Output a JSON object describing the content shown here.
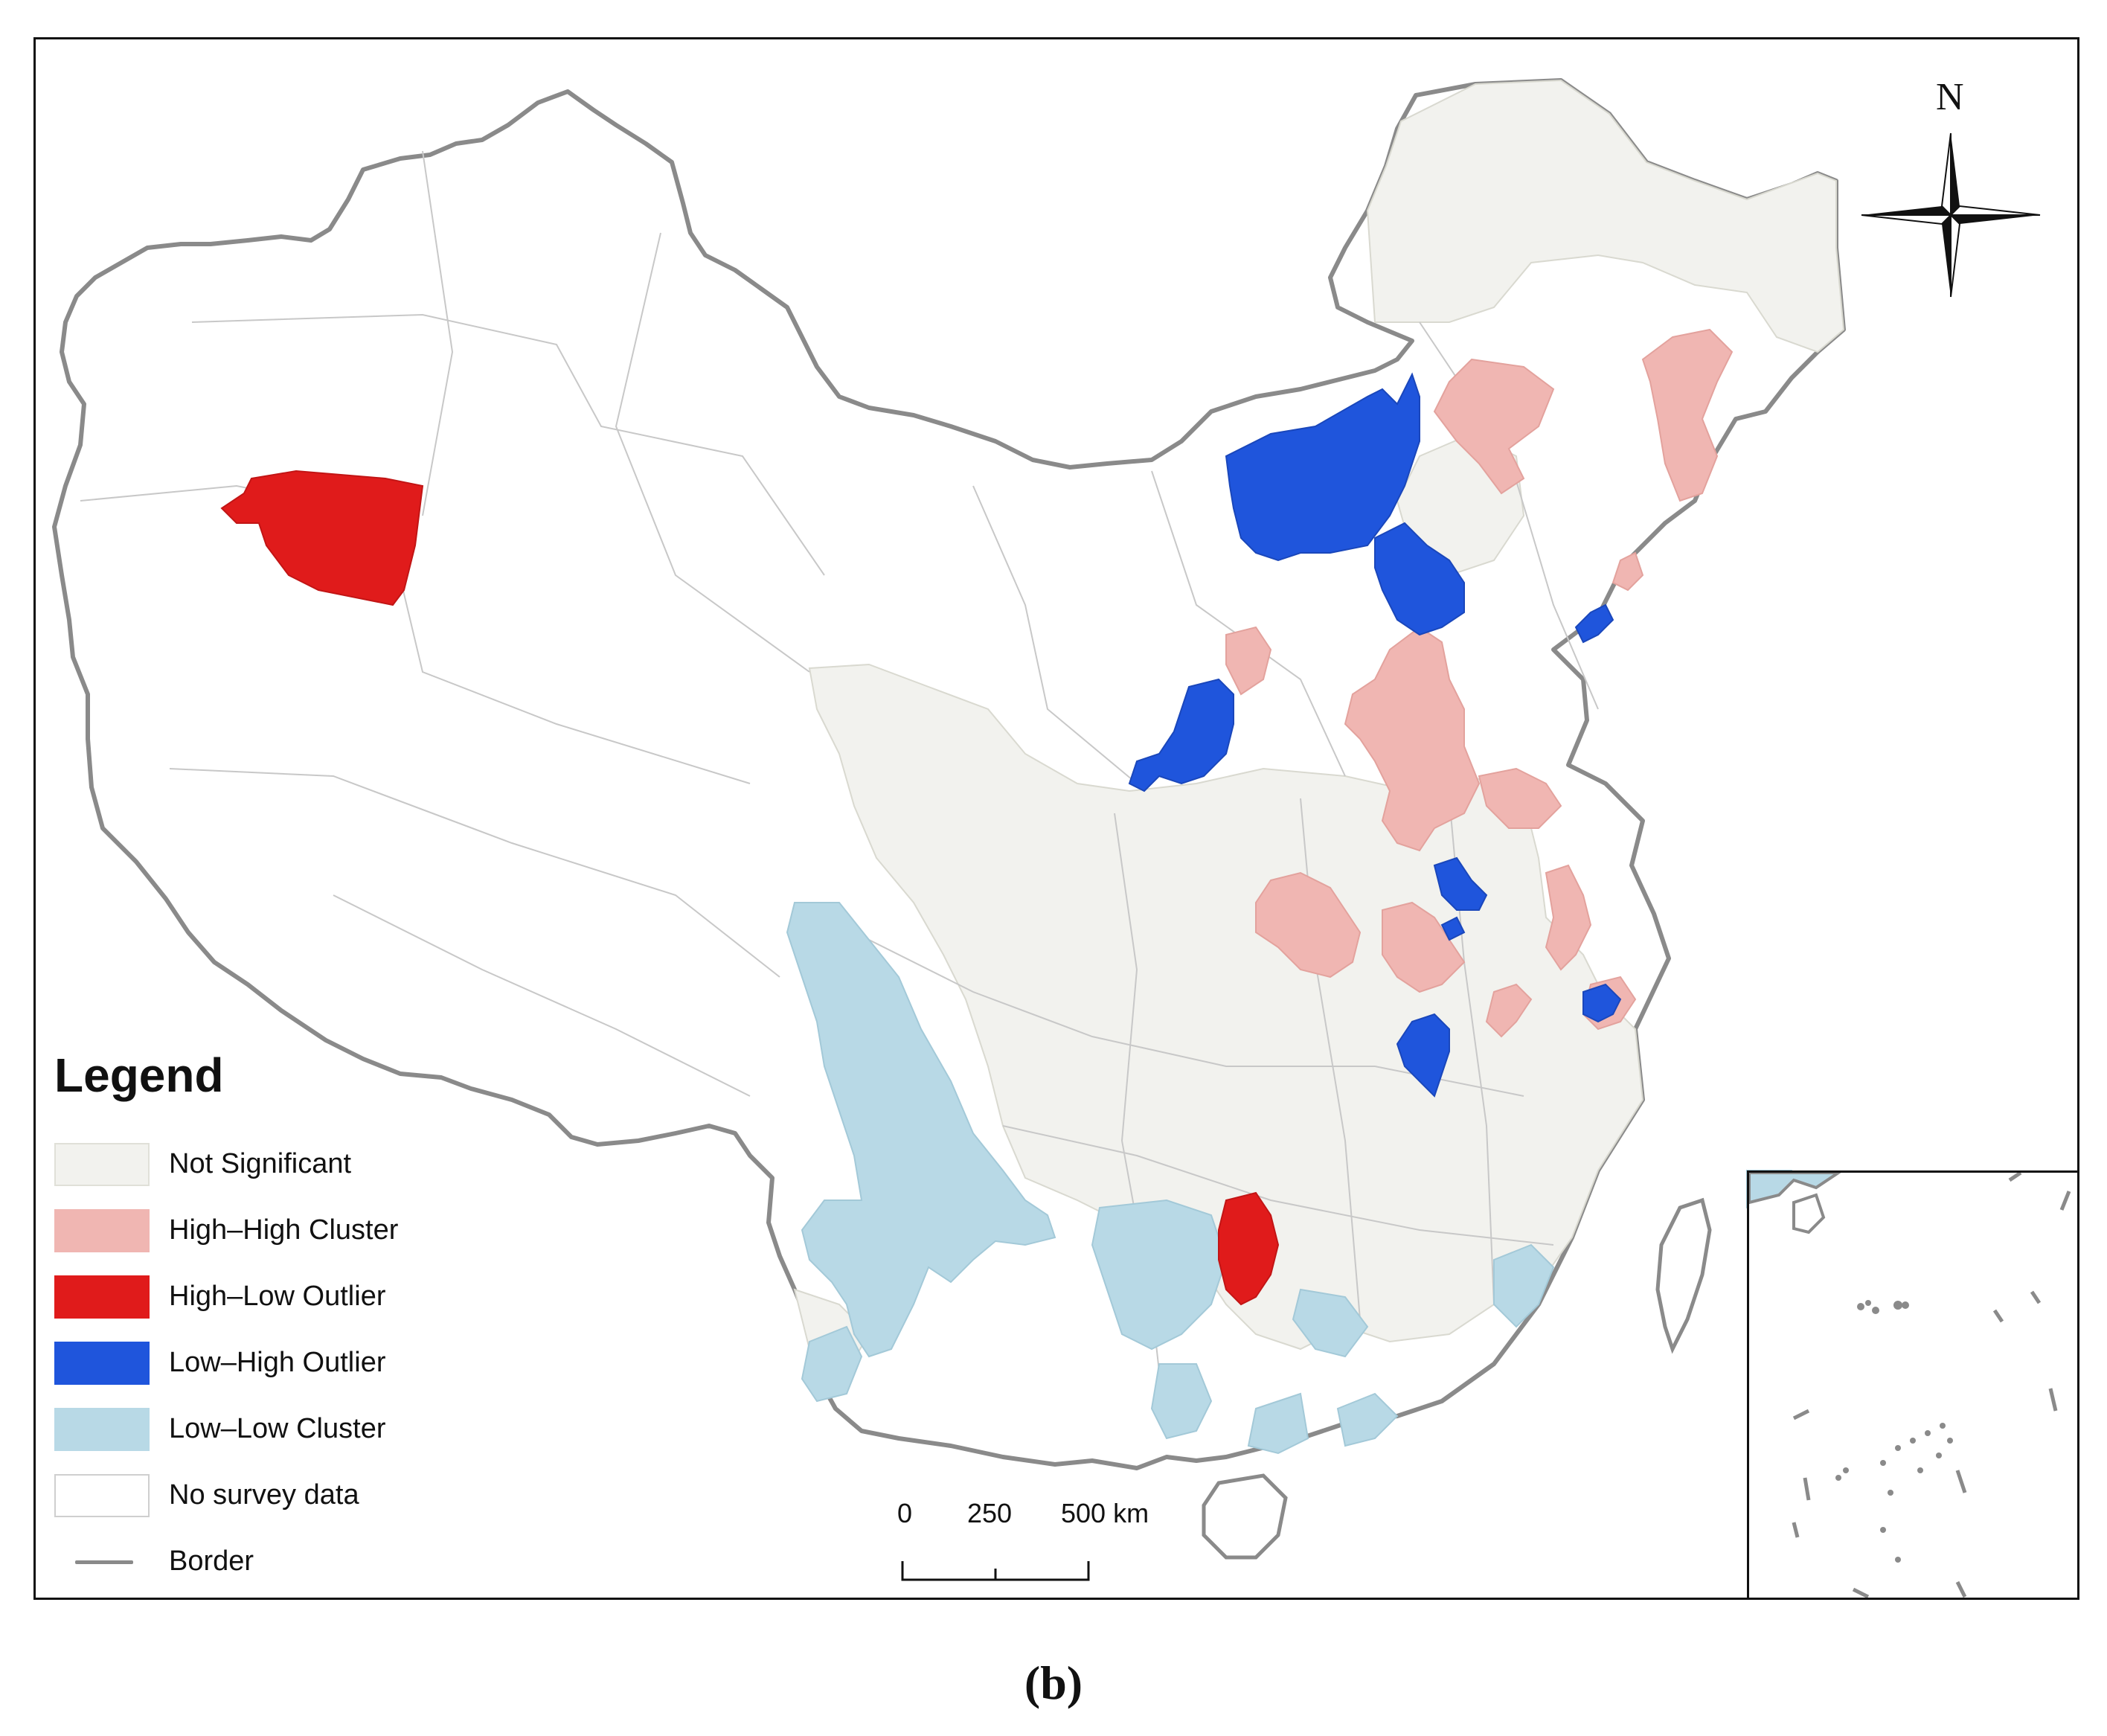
{
  "legend": {
    "title": "Legend",
    "items": [
      {
        "label": "Not Significant",
        "color": "#f2f2ee",
        "kind": "fill"
      },
      {
        "label": "High–High Cluster",
        "color": "#f0b6b2",
        "kind": "fill"
      },
      {
        "label": "High–Low Outlier",
        "color": "#e01b1b",
        "kind": "fill"
      },
      {
        "label": "Low–High Outlier",
        "color": "#1f55dc",
        "kind": "fill"
      },
      {
        "label": "Low–Low Cluster",
        "color": "#b8d9e6",
        "kind": "fill"
      },
      {
        "label": "No survey data",
        "color": "#ffffff",
        "kind": "outline"
      },
      {
        "label": "Border",
        "color": "#8a8a8a",
        "kind": "line"
      }
    ]
  },
  "scale": {
    "labels": [
      "0",
      "250",
      "500 km"
    ]
  },
  "north": "N",
  "caption": "(b)",
  "colors": {
    "not_significant": "#f2f2ee",
    "high_high": "#f0b6b2",
    "high_low": "#e01b1b",
    "low_high": "#1f55dc",
    "low_low": "#b8d9e6",
    "border": "#8a8a8a"
  }
}
